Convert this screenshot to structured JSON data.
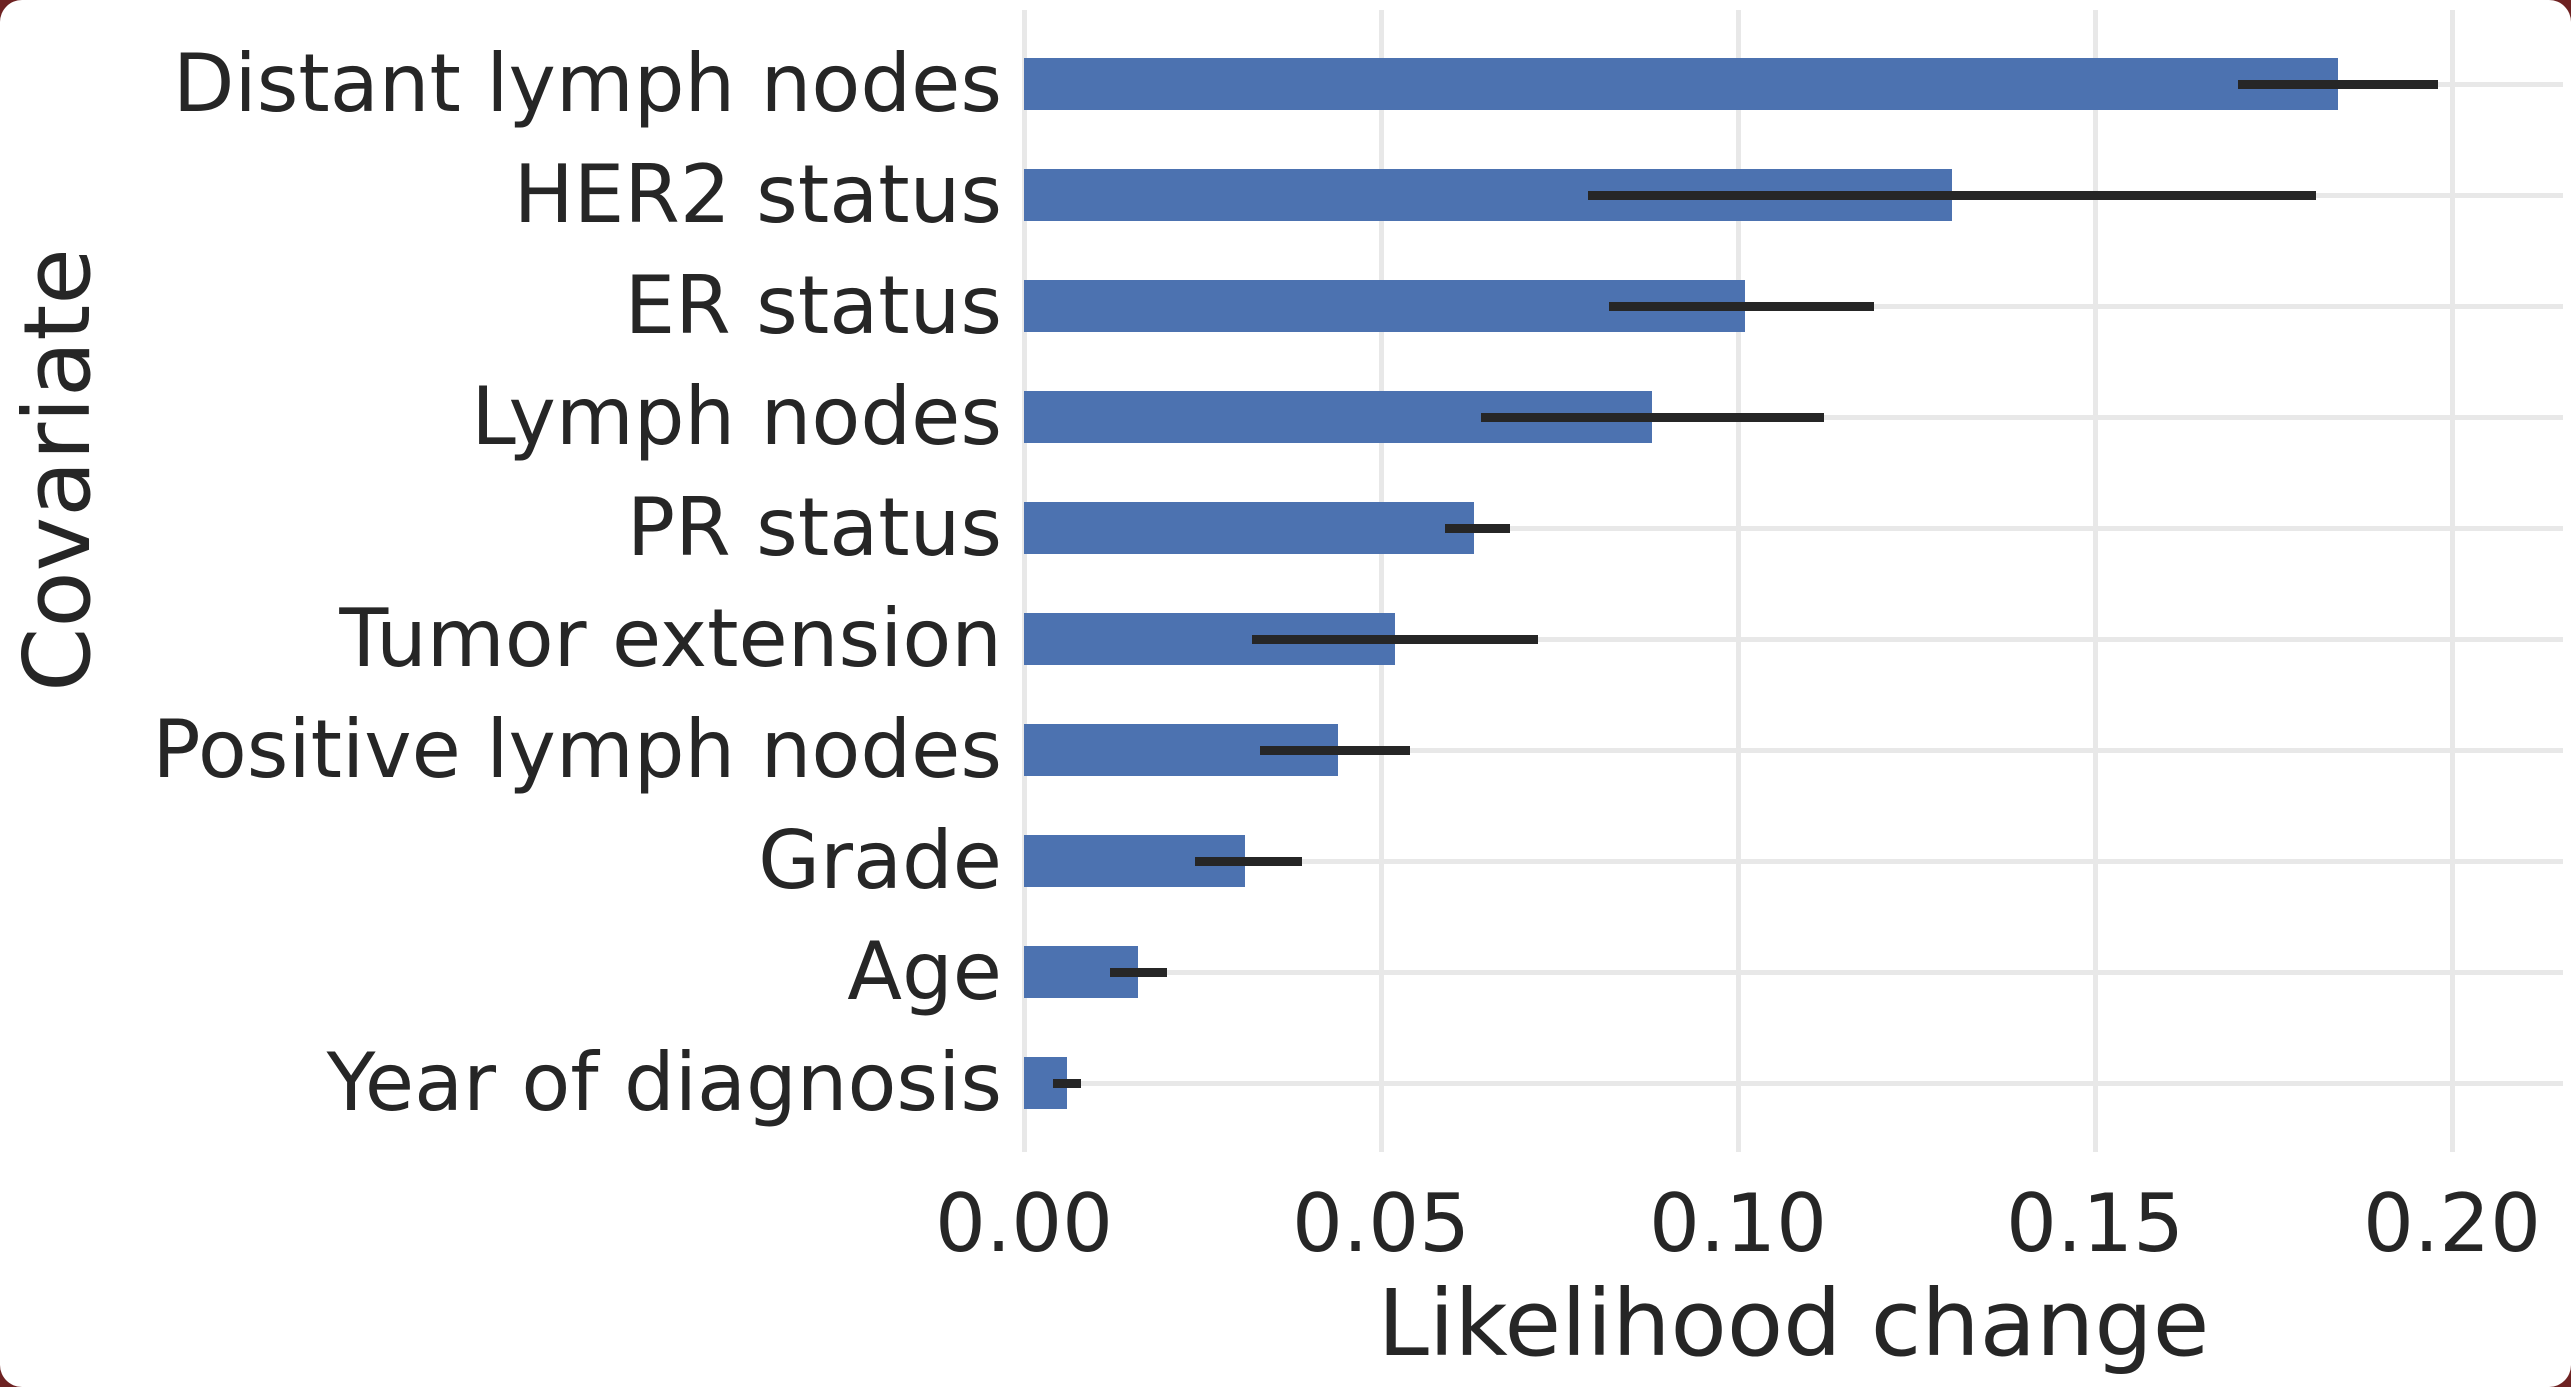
{
  "chart_data": {
    "type": "bar",
    "orientation": "horizontal",
    "title": "",
    "xlabel": "Likelihood change",
    "ylabel": "Covariate",
    "categories": [
      "Distant lymph nodes",
      "HER2 status",
      "ER status",
      "Lymph nodes",
      "PR status",
      "Tumor extension",
      "Positive lymph nodes",
      "Grade",
      "Age",
      "Year of diagnosis"
    ],
    "series": [
      {
        "name": "Likelihood change",
        "values": [
          0.184,
          0.13,
          0.101,
          0.088,
          0.063,
          0.052,
          0.044,
          0.031,
          0.016,
          0.006
        ],
        "error_low": [
          0.17,
          0.079,
          0.082,
          0.064,
          0.059,
          0.032,
          0.033,
          0.024,
          0.012,
          0.004
        ],
        "error_high": [
          0.198,
          0.181,
          0.119,
          0.112,
          0.068,
          0.072,
          0.054,
          0.039,
          0.02,
          0.008
        ]
      }
    ],
    "x_ticks": [
      "0.00",
      "0.05",
      "0.10",
      "0.15",
      "0.20"
    ],
    "x_tick_values": [
      0.0,
      0.05,
      0.1,
      0.15,
      0.2
    ],
    "xlim": [
      0,
      0.2155
    ],
    "grid": true,
    "legend": "none",
    "bar_color": "#4C72B0",
    "errorbar_color": "#262626",
    "grid_color": "#e8e8e8",
    "text_color": "#262626",
    "background_color": "#ffffff"
  }
}
